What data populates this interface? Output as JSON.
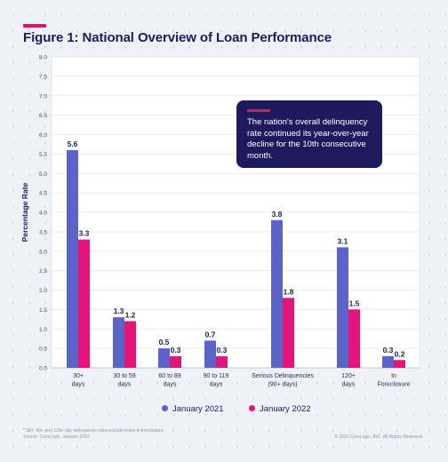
{
  "title": "Figure 1: National Overview of Loan Performance",
  "callout": "The nation's overall delinquency rate continued its year-over-year decline for the 10th consecutive month.",
  "footnote": {
    "line1": "* 30+, 90+ and 120+ day delinquency rates include loans in foreclosure.",
    "line2": "Source: CoreLogic, January 2022"
  },
  "copyright": "© 2022 CoreLogic, INC. All Rights Reserved.",
  "colors": {
    "series1": "#5b63c8",
    "series2": "#e4157a",
    "title": "#1f1a5e",
    "accent": "#e0126e"
  },
  "chart_data": {
    "type": "bar",
    "ylabel": "Percentage Rate",
    "ylim": [
      0,
      8.0
    ],
    "yticks": [
      "0.0",
      "0.5",
      "1.0",
      "1.5",
      "2.0",
      "2.5",
      "3.0",
      "3.5",
      "4.0",
      "4.5",
      "5.0",
      "5.5",
      "6.0",
      "6.5",
      "7.0",
      "7.5",
      "8.0"
    ],
    "grid": true,
    "legend_position": "bottom",
    "categories": [
      [
        "30+",
        "days"
      ],
      [
        "30 to 59",
        "days"
      ],
      [
        "60 to 89",
        "days"
      ],
      [
        "90 to 119",
        "days"
      ],
      [
        "Serious Delinquencies",
        "(90+ days)"
      ],
      [
        "120+",
        "days"
      ],
      [
        "In",
        "Foreclosure"
      ]
    ],
    "series": [
      {
        "name": "January 2021",
        "values": [
          5.6,
          1.3,
          0.5,
          0.7,
          3.8,
          3.1,
          0.3
        ],
        "labels": [
          "5.6",
          "1.3",
          "0.5",
          "0.7",
          "3.8",
          "3.1",
          "0.3"
        ]
      },
      {
        "name": "January 2022",
        "values": [
          3.3,
          1.2,
          0.3,
          0.3,
          1.8,
          1.5,
          0.2
        ],
        "labels": [
          "3.3",
          "1.2",
          "0.3",
          "0.3",
          "1.8",
          "1.5",
          "0.2"
        ]
      }
    ]
  }
}
